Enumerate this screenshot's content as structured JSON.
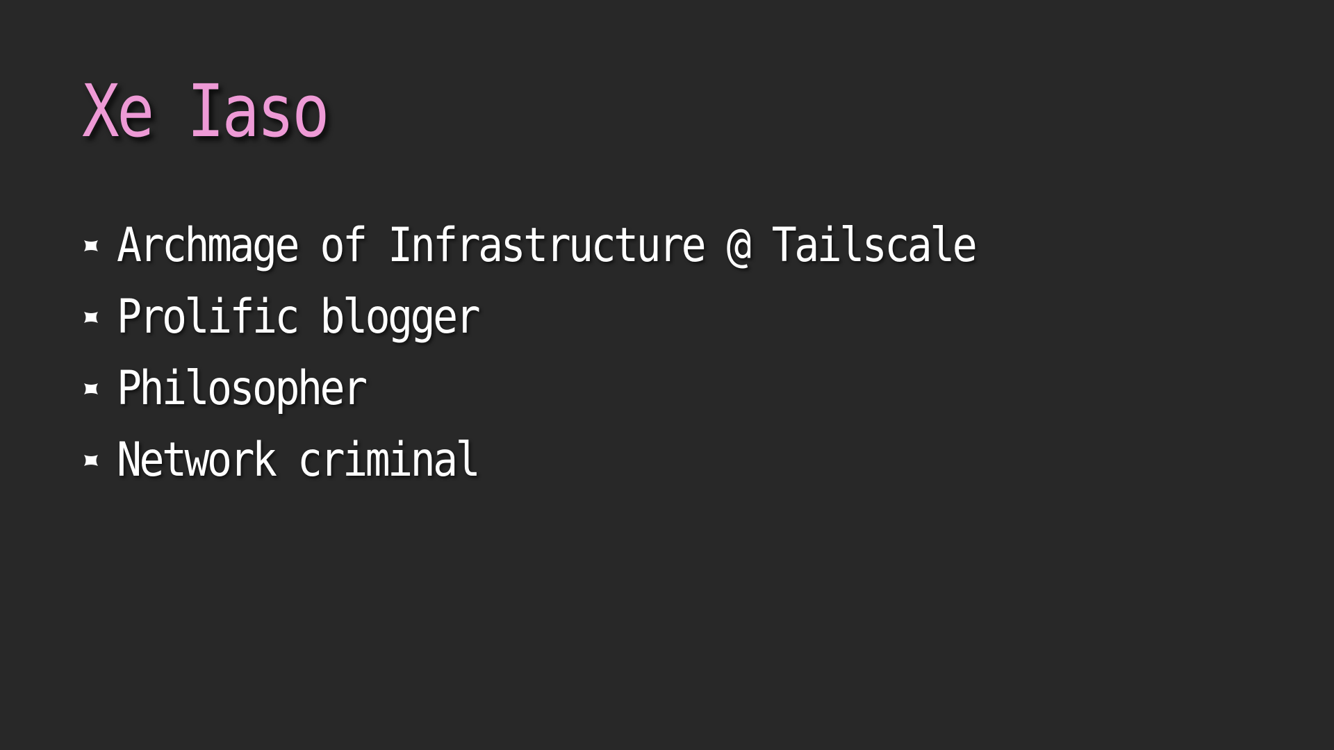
{
  "colors": {
    "background": "#282828",
    "title": "#ee9ad6",
    "text": "#ffffff"
  },
  "slide": {
    "title": "Xe Iaso",
    "bullet_icon": "x-mark-icon",
    "bullets": [
      {
        "text": "Archmage of Infrastructure @ Tailscale"
      },
      {
        "text": "Prolific blogger"
      },
      {
        "text": "Philosopher"
      },
      {
        "text": "Network criminal"
      }
    ]
  }
}
